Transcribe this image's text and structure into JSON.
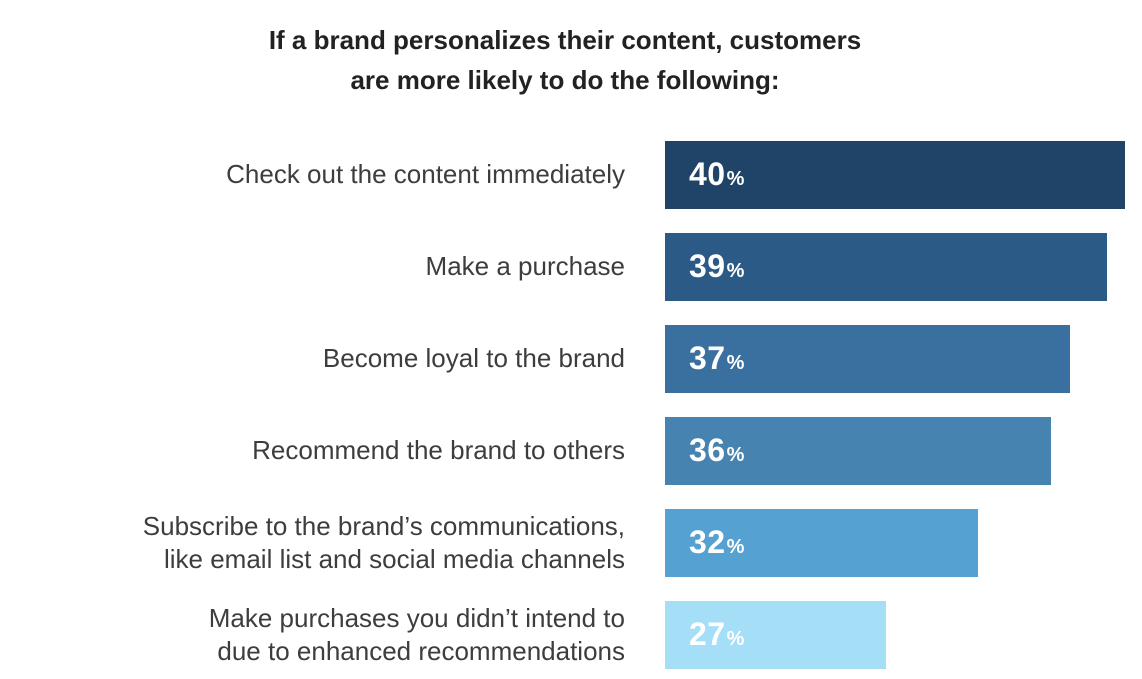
{
  "chart_data": {
    "type": "bar",
    "orientation": "horizontal",
    "title": "If a brand personalizes their content, customers\nare more likely to do the following:",
    "categories": [
      "Check out the content immediately",
      "Make a purchase",
      "Become loyal to the brand",
      "Recommend the brand to others",
      "Subscribe to the brand’s communications,\nlike email list and social media channels",
      "Make purchases you didn’t intend to\ndue to enhanced recommendations"
    ],
    "values": [
      40,
      39,
      37,
      36,
      32,
      27
    ],
    "unit": "%",
    "xlim": [
      15,
      40
    ],
    "bar_colors": [
      "#1f4468",
      "#2a5a85",
      "#3a70a0",
      "#4683b1",
      "#55a1d2",
      "#a5def7"
    ],
    "value_label_color": "#ffffff",
    "grid": false,
    "legend": "none"
  }
}
